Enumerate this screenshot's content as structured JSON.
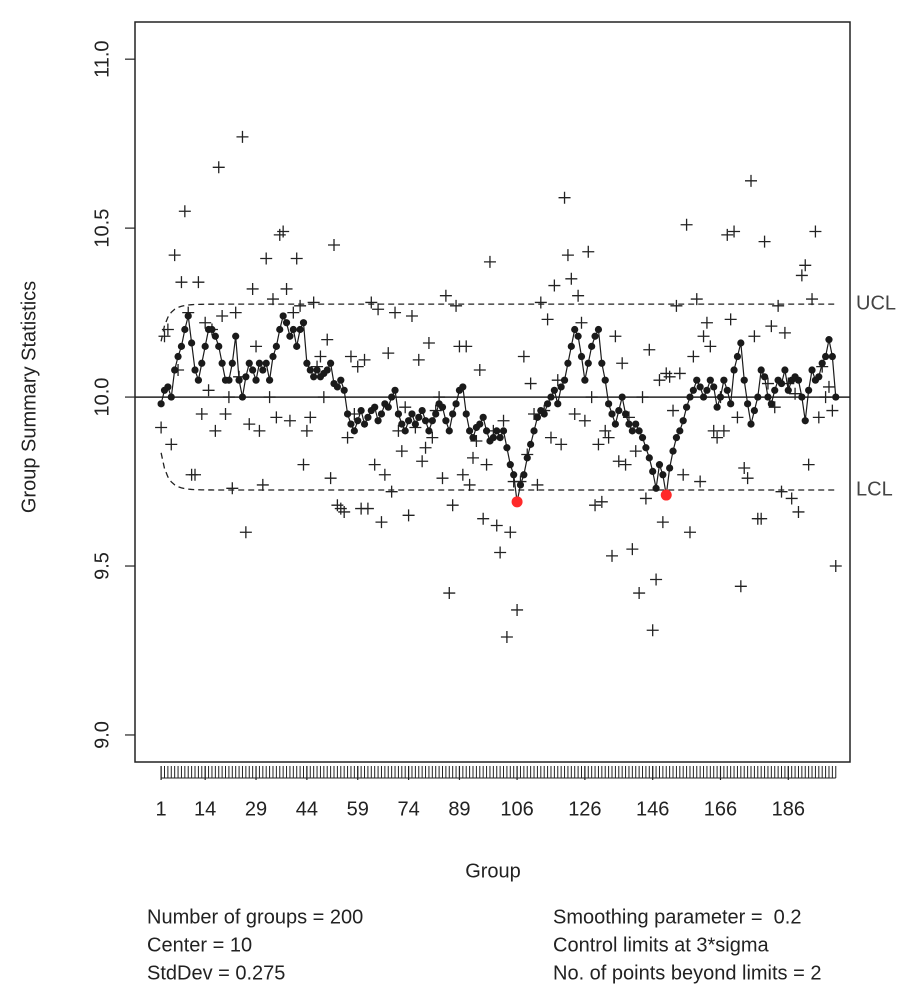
{
  "chart_data": {
    "type": "ewma",
    "ylabel": "Group Summary Statistics",
    "xlabel": "Group",
    "xlim": [
      -6.7,
      204.2
    ],
    "ylim": [
      8.92,
      11.11
    ],
    "xticks": [
      1,
      14,
      29,
      44,
      59,
      74,
      89,
      106,
      126,
      146,
      166,
      186
    ],
    "yticks": [
      {
        "value": 9,
        "label": "9.0"
      },
      {
        "value": 9.5,
        "label": "9.5"
      },
      {
        "value": 10,
        "label": "10.0"
      },
      {
        "value": 10.5,
        "label": "10.5"
      },
      {
        "value": 11,
        "label": "11.0"
      }
    ],
    "center": 10,
    "ucl": 10.275,
    "lcl": 9.725,
    "ucl_label": "UCL",
    "lcl_label": "LCL",
    "lambda": 0.2,
    "color": "#1a1a1a",
    "beyond_color": "#ff2a2a",
    "statistics": [
      9.91,
      10.18,
      10.2,
      9.86,
      10.42,
      10.08,
      10.34,
      10.55,
      10.25,
      9.77,
      9.77,
      10.34,
      9.95,
      10.22,
      10.02,
      10.2,
      9.9,
      10.68,
      10.24,
      9.95,
      10.0,
      9.73,
      10.25,
      10.06,
      10.77,
      9.6,
      9.92,
      10.32,
      10.15,
      9.9,
      9.74,
      10.41,
      10.0,
      10.29,
      9.94,
      10.48,
      10.49,
      10.32,
      9.93,
      10.25,
      10.41,
      10.27,
      9.8,
      9.9,
      9.94,
      10.28,
      10.09,
      10.12,
      10.0,
      10.17,
      9.76,
      10.45,
      9.68,
      9.67,
      9.66,
      9.88,
      10.12,
      9.95,
      10.09,
      9.67,
      10.11,
      9.67,
      10.28,
      9.8,
      10.26,
      9.63,
      9.77,
      10.13,
      9.72,
      10.25,
      9.9,
      9.84,
      9.97,
      9.65,
      10.24,
      9.91,
      10.11,
      9.81,
      9.85,
      10.16,
      9.88,
      9.96,
      10.0,
      9.76,
      10.3,
      9.42,
      9.68,
      10.27,
      10.15,
      9.77,
      10.15,
      9.74,
      9.82,
      9.87,
      10.08,
      9.64,
      9.8,
      10.4,
      9.9,
      9.62,
      9.54,
      9.93,
      9.29,
      9.6,
      9.75,
      9.37,
      9.75,
      10.12,
      9.83,
      10.04,
      9.95,
      9.74,
      10.28,
      9.96,
      10.23,
      9.88,
      10.33,
      10.05,
      9.86,
      10.59,
      10.42,
      10.35,
      9.95,
      10.3,
      10.22,
      9.93,
      10.43,
      10.0,
      9.68,
      9.86,
      9.69,
      9.9,
      9.88,
      9.53,
      10.18,
      9.81,
      10.1,
      9.8,
      9.94,
      9.55,
      9.84,
      9.42,
      10.0,
      9.7,
      10.14,
      9.31,
      9.46,
      10.05,
      9.63,
      10.07,
      10.06,
      9.96,
      10.27,
      10.07,
      9.77,
      10.51,
      9.6,
      10.12,
      10.29,
      9.75,
      10.18,
      10.22,
      10.15,
      9.9,
      9.88,
      10.0,
      9.9,
      10.48,
      10.23,
      10.49,
      9.94,
      9.44,
      9.79,
      9.76,
      10.64,
      10.18,
      9.64,
      9.64,
      10.46,
      10.04,
      10.21,
      9.97,
      10.27,
      9.72,
      10.19,
      10.04,
      9.7,
      10.01,
      9.66,
      10.36,
      10.39,
      9.8,
      10.29,
      10.49,
      9.94,
      10.09,
      10.0,
      10.03,
      9.96,
      9.5
    ],
    "ewma": [
      9.98,
      10.02,
      10.03,
      10.0,
      10.08,
      10.12,
      10.15,
      10.2,
      10.24,
      10.16,
      10.08,
      10.05,
      10.1,
      10.15,
      10.2,
      10.2,
      10.18,
      10.15,
      10.1,
      10.05,
      10.05,
      10.1,
      10.18,
      10.05,
      10.0,
      10.06,
      10.1,
      10.08,
      10.05,
      10.1,
      10.08,
      10.1,
      10.05,
      10.12,
      10.15,
      10.2,
      10.24,
      10.22,
      10.18,
      10.2,
      10.15,
      10.2,
      10.22,
      10.1,
      10.08,
      10.06,
      10.08,
      10.06,
      10.07,
      10.08,
      10.1,
      10.04,
      10.03,
      10.05,
      10.02,
      9.95,
      9.92,
      9.9,
      9.93,
      9.96,
      9.92,
      9.94,
      9.96,
      9.97,
      9.93,
      9.95,
      9.98,
      9.97,
      10.0,
      10.02,
      9.95,
      9.92,
      9.9,
      9.93,
      9.95,
      9.92,
      9.94,
      9.96,
      9.93,
      9.9,
      9.93,
      9.95,
      9.98,
      9.97,
      9.93,
      9.9,
      9.95,
      9.98,
      10.02,
      10.03,
      9.95,
      9.9,
      9.88,
      9.91,
      9.92,
      9.94,
      9.9,
      9.87,
      9.88,
      9.9,
      9.88,
      9.9,
      9.85,
      9.8,
      9.77,
      9.69,
      9.74,
      9.77,
      9.82,
      9.86,
      9.9,
      9.94,
      9.96,
      9.95,
      9.98,
      10.0,
      10.02,
      9.98,
      10.03,
      10.05,
      10.1,
      10.15,
      10.2,
      10.18,
      10.12,
      10.05,
      10.1,
      10.15,
      10.18,
      10.2,
      10.1,
      10.05,
      9.98,
      9.95,
      9.92,
      9.96,
      10.0,
      9.95,
      9.92,
      9.9,
      9.92,
      9.9,
      9.88,
      9.85,
      9.82,
      9.78,
      9.73,
      9.8,
      9.77,
      9.71,
      9.79,
      9.84,
      9.88,
      9.9,
      9.93,
      9.97,
      10.0,
      10.02,
      10.05,
      10.03,
      10.0,
      10.02,
      10.05,
      10.03,
      9.97,
      10.0,
      10.05,
      10.02,
      9.98,
      10.08,
      10.12,
      10.16,
      10.05,
      9.98,
      9.92,
      9.96,
      10.0,
      10.08,
      10.06,
      10.0,
      9.98,
      10.02,
      10.05,
      10.04,
      10.08,
      10.02,
      10.05,
      10.06,
      10.05,
      10.0,
      9.93,
      10.02,
      10.08,
      10.05,
      10.06,
      10.1,
      10.12,
      10.17,
      10.12,
      10.0
    ],
    "stats_left": [
      "Number of groups = 200",
      "Center = 10",
      "StdDev = 0.275"
    ],
    "stats_right": [
      "Smoothing parameter =  0.2",
      "Control limits at 3*sigma",
      "No. of points beyond limits = 2"
    ]
  }
}
